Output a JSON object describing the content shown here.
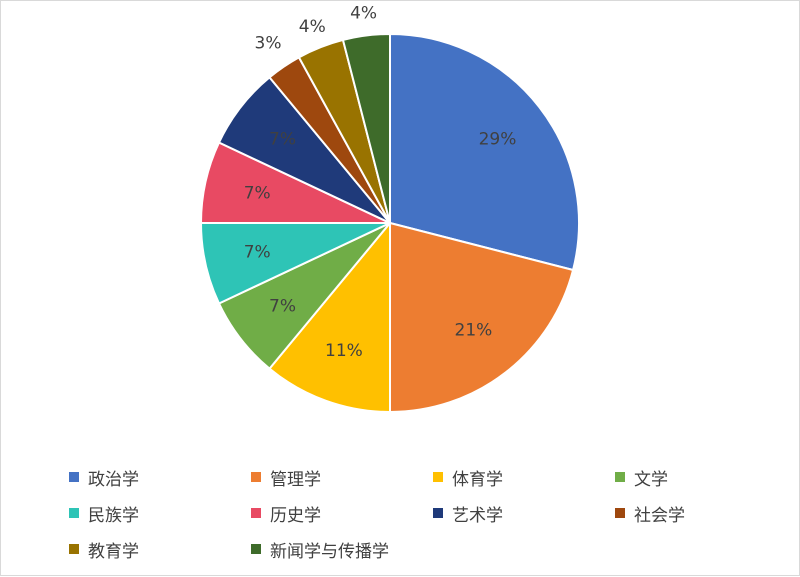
{
  "chart_data": {
    "type": "pie",
    "title": "",
    "slices": [
      {
        "label": "政治学",
        "value": 29,
        "display": "29%",
        "color": "#4472C4"
      },
      {
        "label": "管理学",
        "value": 21,
        "display": "21%",
        "color": "#ED7D31"
      },
      {
        "label": "体育学",
        "value": 11,
        "display": "11%",
        "color": "#FFC000"
      },
      {
        "label": "文学",
        "value": 7,
        "display": "7%",
        "color": "#70AD47"
      },
      {
        "label": "民族学",
        "value": 7,
        "display": "7%",
        "color": "#2EC4B6"
      },
      {
        "label": "历史学",
        "value": 7,
        "display": "7%",
        "color": "#E84A63"
      },
      {
        "label": "艺术学",
        "value": 7,
        "display": "7%",
        "color": "#1F3A7A"
      },
      {
        "label": "社会学",
        "value": 3,
        "display": "3%",
        "color": "#9E480E"
      },
      {
        "label": "教育学",
        "value": 4,
        "display": "4%",
        "color": "#997300"
      },
      {
        "label": "新闻学与传播学",
        "value": 4,
        "display": "4%",
        "color": "#3E6B2A"
      }
    ],
    "start": "12 o'clock",
    "direction": "clockwise",
    "legend_position": "bottom"
  }
}
